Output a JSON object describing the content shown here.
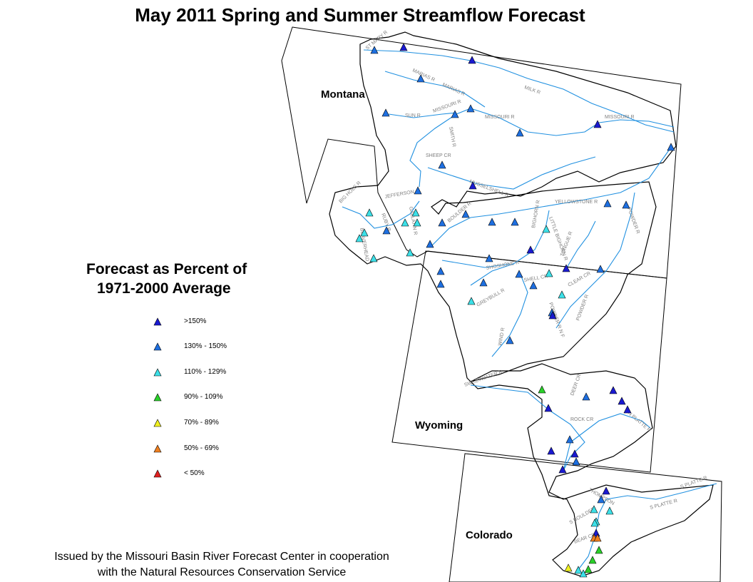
{
  "title": "May 2011 Spring and Summer Streamflow Forecast",
  "states": [
    "Montana",
    "Wyoming",
    "Colorado"
  ],
  "legend": {
    "title_line1": "Forecast as Percent of",
    "title_line2": "1971-2000 Average",
    "items": [
      {
        "label": ">150%",
        "color": "#1a1ad0"
      },
      {
        "label": "130% - 150%",
        "color": "#1e6fe0"
      },
      {
        "label": "110% - 129%",
        "color": "#3ce0e8"
      },
      {
        "label": "90% - 109%",
        "color": "#2ad02a"
      },
      {
        "label": "70% - 89%",
        "color": "#f0f020"
      },
      {
        "label": "50% - 69%",
        "color": "#f08020"
      },
      {
        "label": "< 50%",
        "color": "#e02020"
      }
    ]
  },
  "river_labels": [
    "MILK R",
    "MARIAS R",
    "MARIAS R",
    "MISSOURI R",
    "MISSOURI R",
    "MISSOURI R",
    "SUN R",
    "SMITH R",
    "SHEEP CR",
    "MUSSELSHELL R",
    "JEFFERSON",
    "BIG HOLE R",
    "RUBY R",
    "BEAVERHEAD",
    "GALLATIN R",
    "BOULDER R",
    "YELLOWSTONE R",
    "POWDER R",
    "BIGHORN R",
    "LITTLE BIGHORN R",
    "TONGUE R",
    "SHOSHONE R",
    "GREYBULL R",
    "SHELL CR",
    "CLEAR CR",
    "POWDER R",
    "POWDER R N F",
    "WIND R",
    "SWEETWATER R",
    "DEER CR",
    "N PLATTE R",
    "ROCK CR",
    "THOMPSON",
    "S PLATTE R",
    "S PLATTE R",
    "S BOULDER",
    "BEAR CR",
    "ST MARY R"
  ],
  "footer_line1": "Issued by the Missouri Basin River Forecast Center in cooperation",
  "footer_line2": "with the Natural Resources Conservation Service"
}
